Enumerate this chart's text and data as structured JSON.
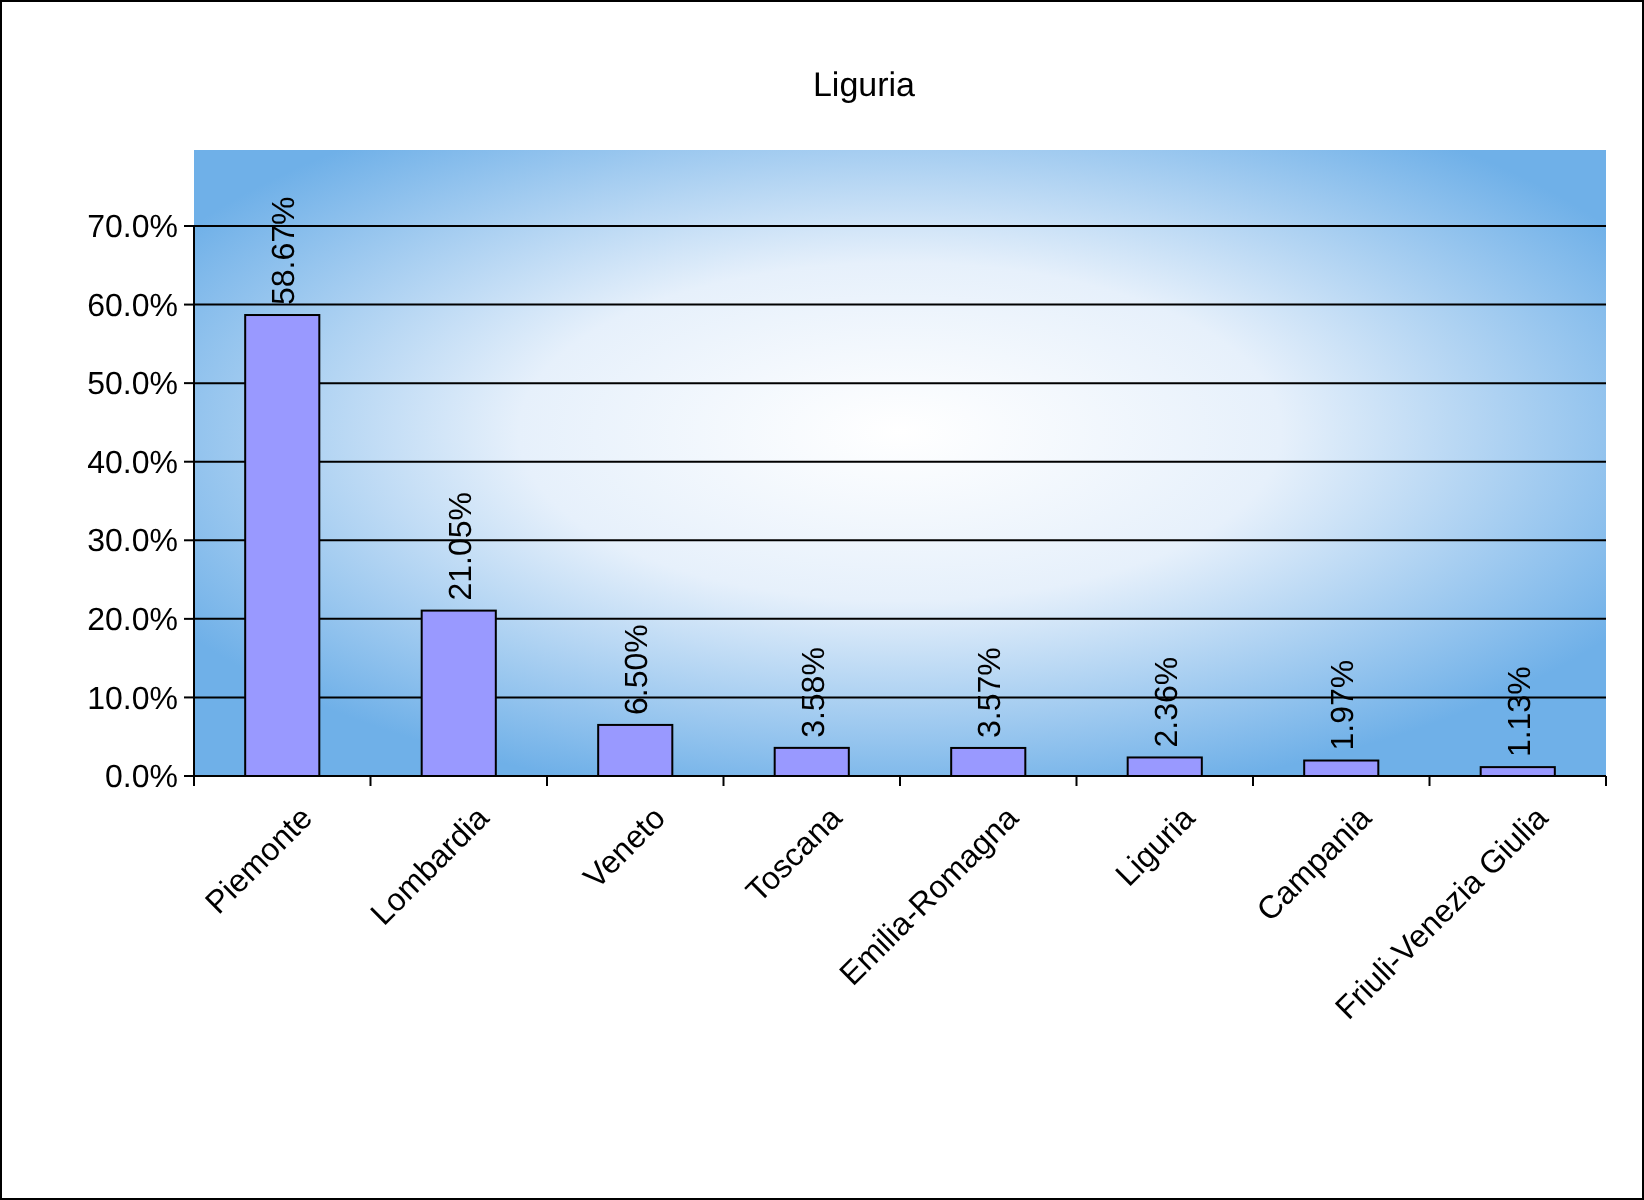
{
  "chart_data": {
    "type": "bar",
    "title": "Liguria",
    "categories": [
      "Piemonte",
      "Lombardia",
      "Veneto",
      "Toscana",
      "Emilia-Romagna",
      "Liguria",
      "Campania",
      "Friuli-Venezia Giulia"
    ],
    "values": [
      58.67,
      21.05,
      6.5,
      3.58,
      3.57,
      2.36,
      1.97,
      1.13
    ],
    "color": "#9999ff",
    "ylim": [
      0,
      70
    ],
    "yticks": [
      {
        "value": 0,
        "label": "0.0%"
      },
      {
        "value": 10,
        "label": "10.0%"
      },
      {
        "value": 20,
        "label": "20.0%"
      },
      {
        "value": 30,
        "label": "30.0%"
      },
      {
        "value": 40,
        "label": "40.0%"
      },
      {
        "value": 50,
        "label": "50.0%"
      },
      {
        "value": 60,
        "label": "60.0%"
      },
      {
        "value": 70,
        "label": "70.0%"
      }
    ],
    "value_labels": [
      "58.67%",
      "21.05%",
      "6.50%",
      "3.58%",
      "3.57%",
      "2.36%",
      "1.97%",
      "1.13%"
    ],
    "grid": "y"
  }
}
